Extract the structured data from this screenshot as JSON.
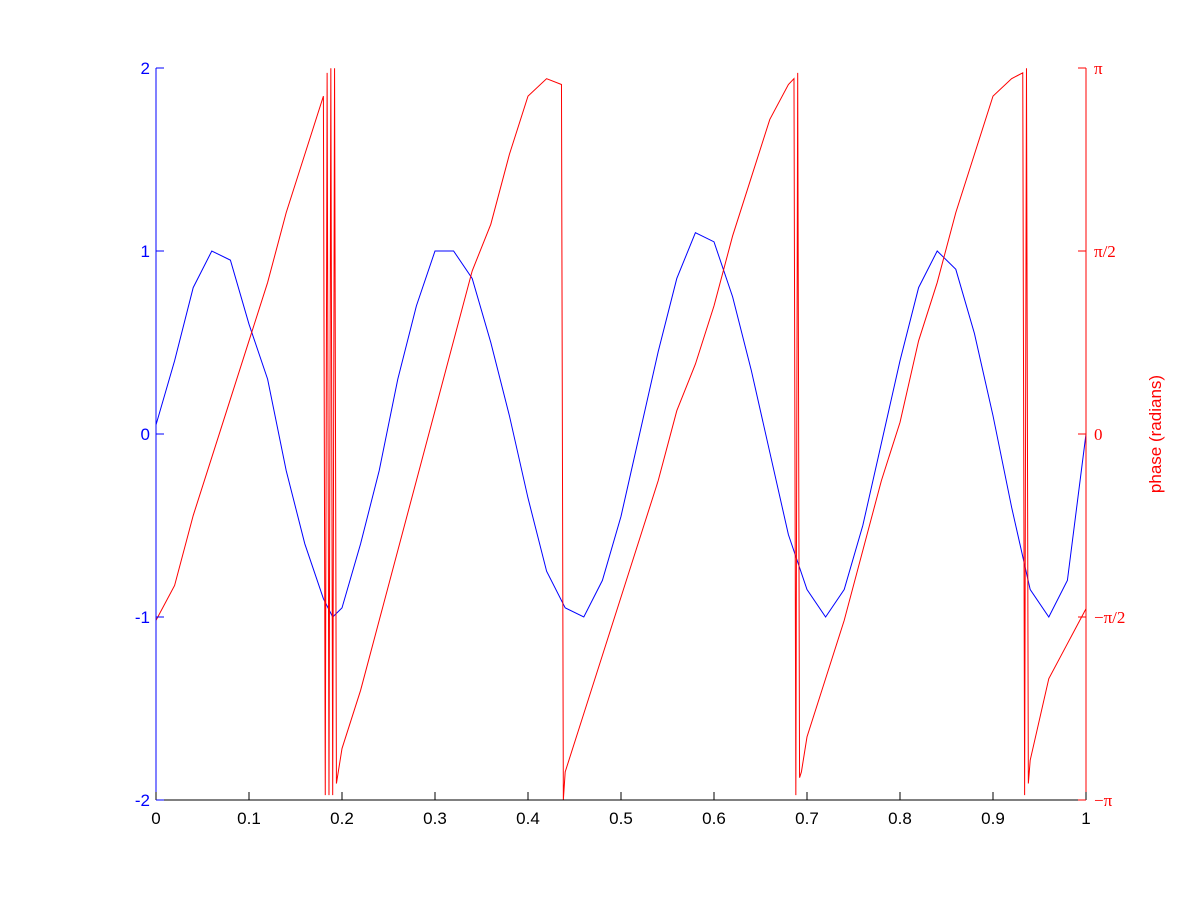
{
  "chart_data": {
    "type": "line",
    "title": "",
    "xlabel": "",
    "ylabel_left": "",
    "ylabel_right": "phase (radians)",
    "xlim": [
      0,
      1
    ],
    "ylim_left": [
      -2,
      2
    ],
    "ylim_right": [
      -3.14159,
      3.14159
    ],
    "grid": false,
    "x_ticks": [
      {
        "value": 0,
        "label": "0"
      },
      {
        "value": 0.1,
        "label": "0.1"
      },
      {
        "value": 0.2,
        "label": "0.2"
      },
      {
        "value": 0.3,
        "label": "0.3"
      },
      {
        "value": 0.4,
        "label": "0.4"
      },
      {
        "value": 0.5,
        "label": "0.5"
      },
      {
        "value": 0.6,
        "label": "0.6"
      },
      {
        "value": 0.7,
        "label": "0.7"
      },
      {
        "value": 0.8,
        "label": "0.8"
      },
      {
        "value": 0.9,
        "label": "0.9"
      },
      {
        "value": 1,
        "label": "1"
      }
    ],
    "y_ticks_left": [
      {
        "value": -2,
        "label": "-2"
      },
      {
        "value": -1,
        "label": "-1"
      },
      {
        "value": 0,
        "label": "0"
      },
      {
        "value": 1,
        "label": "1"
      },
      {
        "value": 2,
        "label": "2"
      }
    ],
    "y_ticks_right": [
      {
        "value": -3.14159,
        "label": "−π"
      },
      {
        "value": -1.5708,
        "label": "−π/2"
      },
      {
        "value": 0,
        "label": "0"
      },
      {
        "value": 1.5708,
        "label": "π/2"
      },
      {
        "value": 3.14159,
        "label": "π"
      }
    ],
    "series": [
      {
        "axis": "left",
        "color": "#0000ff",
        "x": [
          0,
          0.02,
          0.04,
          0.06,
          0.08,
          0.1,
          0.12,
          0.14,
          0.16,
          0.18,
          0.19,
          0.2,
          0.22,
          0.24,
          0.26,
          0.28,
          0.3,
          0.32,
          0.34,
          0.36,
          0.38,
          0.4,
          0.42,
          0.44,
          0.46,
          0.48,
          0.5,
          0.52,
          0.54,
          0.56,
          0.58,
          0.6,
          0.62,
          0.64,
          0.66,
          0.68,
          0.7,
          0.72,
          0.74,
          0.76,
          0.78,
          0.8,
          0.82,
          0.84,
          0.86,
          0.88,
          0.9,
          0.92,
          0.94,
          0.96,
          0.98,
          1
        ],
        "y": [
          0.05,
          0.4,
          0.8,
          1.0,
          0.95,
          0.6,
          0.3,
          -0.2,
          -0.6,
          -0.9,
          -1.0,
          -0.95,
          -0.6,
          -0.2,
          0.3,
          0.7,
          1.0,
          1.0,
          0.85,
          0.5,
          0.1,
          -0.35,
          -0.75,
          -0.95,
          -1.0,
          -0.8,
          -0.45,
          0.0,
          0.45,
          0.85,
          1.1,
          1.05,
          0.75,
          0.35,
          -0.1,
          -0.55,
          -0.85,
          -1.0,
          -0.85,
          -0.5,
          -0.05,
          0.4,
          0.8,
          1.0,
          0.9,
          0.55,
          0.1,
          -0.4,
          -0.85,
          -1.0,
          -0.8,
          0.0
        ]
      },
      {
        "axis": "right",
        "color": "#ff0000",
        "x": [
          0,
          0.02,
          0.04,
          0.06,
          0.08,
          0.1,
          0.12,
          0.14,
          0.16,
          0.18,
          0.182,
          0.184,
          0.186,
          0.188,
          0.19,
          0.192,
          0.194,
          0.196,
          0.2,
          0.22,
          0.24,
          0.26,
          0.28,
          0.3,
          0.32,
          0.34,
          0.36,
          0.38,
          0.4,
          0.42,
          0.436,
          0.438,
          0.44,
          0.46,
          0.48,
          0.5,
          0.52,
          0.54,
          0.56,
          0.58,
          0.6,
          0.62,
          0.64,
          0.66,
          0.68,
          0.686,
          0.688,
          0.69,
          0.692,
          0.694,
          0.7,
          0.72,
          0.74,
          0.76,
          0.78,
          0.8,
          0.82,
          0.84,
          0.86,
          0.88,
          0.9,
          0.92,
          0.932,
          0.934,
          0.936,
          0.938,
          0.94,
          0.96,
          0.98,
          1
        ],
        "y": [
          -1.6,
          -1.3,
          -0.7,
          -0.2,
          0.3,
          0.8,
          1.3,
          1.9,
          2.4,
          2.9,
          -3.1,
          3.1,
          -3.1,
          3.14,
          -3.1,
          3.14,
          -3.0,
          -2.9,
          -2.7,
          -2.2,
          -1.6,
          -1.0,
          -0.4,
          0.2,
          0.8,
          1.4,
          1.8,
          2.4,
          2.9,
          3.05,
          3.0,
          -3.14,
          -2.9,
          -2.4,
          -1.9,
          -1.4,
          -0.9,
          -0.4,
          0.2,
          0.6,
          1.1,
          1.7,
          2.2,
          2.7,
          3.0,
          3.05,
          -3.1,
          3.1,
          -2.95,
          -2.9,
          -2.6,
          -2.1,
          -1.6,
          -1.0,
          -0.4,
          0.1,
          0.8,
          1.3,
          1.9,
          2.4,
          2.9,
          3.05,
          3.1,
          -3.1,
          3.14,
          -3.0,
          -2.8,
          -2.1,
          -1.8,
          -1.5
        ]
      }
    ]
  }
}
